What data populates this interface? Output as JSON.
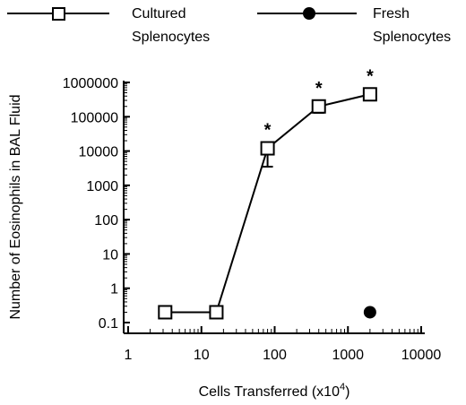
{
  "chart_data": {
    "type": "line",
    "x_scale": "log",
    "y_scale": "log",
    "xlim": [
      1,
      10000
    ],
    "ylim": [
      0.1,
      1000000
    ],
    "xlabel": "Cells Transferred (x10",
    "xlabel_sup": "4",
    "xlabel_close": ")",
    "ylabel": "Number of Eosinophils in BAL Fluid",
    "x_ticks": [
      1,
      10,
      100,
      1000,
      10000
    ],
    "x_tick_labels": [
      "1",
      "10",
      "100",
      "1000",
      "10000"
    ],
    "y_ticks": [
      0.1,
      1,
      10,
      100,
      1000,
      10000,
      100000,
      1000000
    ],
    "y_tick_labels": [
      "0.1",
      "1",
      "10",
      "100",
      "1000",
      "10000",
      "100000",
      "1000000"
    ],
    "legend_position": "top",
    "grid": false,
    "series": [
      {
        "name_lines": [
          "Cultured",
          "Splenocytes"
        ],
        "marker": "open-square",
        "color": "#000000",
        "points": [
          {
            "x": 3.2,
            "y": 0.2
          },
          {
            "x": 16,
            "y": 0.2
          },
          {
            "x": 80,
            "y": 12000,
            "err_low": 3500
          },
          {
            "x": 400,
            "y": 200000,
            "err_low": 130000
          },
          {
            "x": 2000,
            "y": 450000
          }
        ],
        "significance_marks": [
          {
            "x": 80,
            "label": "*"
          },
          {
            "x": 400,
            "label": "*"
          },
          {
            "x": 2000,
            "label": "*"
          }
        ]
      },
      {
        "name_lines": [
          "Fresh",
          "Splenocytes"
        ],
        "marker": "filled-circle",
        "color": "#000000",
        "points": [
          {
            "x": 2000,
            "y": 0.2
          }
        ]
      }
    ]
  }
}
